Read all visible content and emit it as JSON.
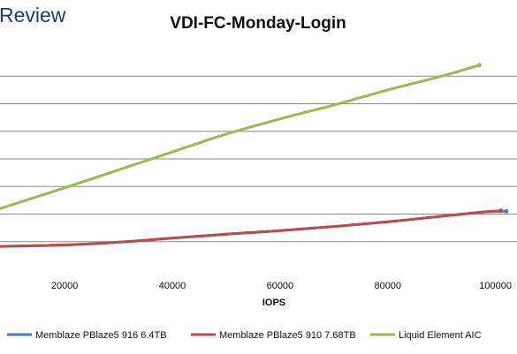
{
  "brand_text": "Review",
  "chart_data": {
    "type": "line",
    "title": "VDI-FC-Monday-Login",
    "xlabel": "IOPS",
    "ylabel": "",
    "xlim": [
      8000,
      104000
    ],
    "ylim": [
      0,
      8
    ],
    "x_ticks": [
      20000,
      40000,
      60000,
      80000,
      100000
    ],
    "x_tick_labels": [
      "20000",
      "40000",
      "60000",
      "80000",
      "100000"
    ],
    "y_gridlines": [
      1,
      2,
      3,
      4,
      5,
      6,
      7
    ],
    "grid": true,
    "legend_position": "bottom",
    "series": [
      {
        "name": "Memblaze PBlaze5 916 6.4TB",
        "color": "#4a7ebb",
        "x": [
          8000,
          20000,
          30000,
          40000,
          50000,
          60000,
          70000,
          80000,
          90000,
          98000,
          102000
        ],
        "y": [
          0.83,
          0.88,
          0.98,
          1.13,
          1.27,
          1.4,
          1.55,
          1.72,
          1.92,
          2.08,
          2.1
        ]
      },
      {
        "name": "Memblaze PBlaze5 910 7.68TB",
        "color": "#be4b48",
        "x": [
          8000,
          20000,
          30000,
          40000,
          50000,
          60000,
          70000,
          80000,
          90000,
          98000,
          101000
        ],
        "y": [
          0.83,
          0.88,
          0.98,
          1.13,
          1.27,
          1.4,
          1.55,
          1.72,
          1.92,
          2.08,
          2.12
        ]
      },
      {
        "name": "Liquid Element AIC",
        "color": "#98b954",
        "x": [
          8000,
          20000,
          30000,
          40000,
          50000,
          60000,
          70000,
          80000,
          90000,
          97000
        ],
        "y": [
          2.2,
          2.95,
          3.6,
          4.25,
          4.9,
          5.45,
          5.95,
          6.5,
          7.0,
          7.4
        ]
      }
    ]
  }
}
